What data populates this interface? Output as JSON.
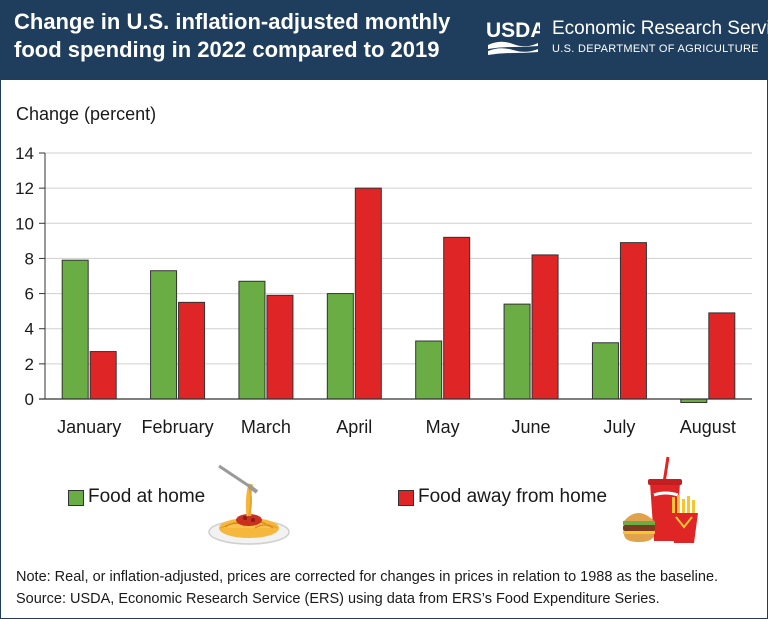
{
  "header": {
    "title": "Change in U.S. inflation-adjusted monthly food spending in 2022 compared to 2019",
    "logo_text": "USDA",
    "agency": "Economic Research Service",
    "department": "U.S. DEPARTMENT OF AGRICULTURE"
  },
  "colors": {
    "header_bg": "#1f3e5e",
    "food_at_home": "#6aad45",
    "food_away": "#e02526",
    "grid": "#d0d0d0"
  },
  "chart_data": {
    "type": "bar",
    "title": "Change in U.S. inflation-adjusted monthly food spending in 2022 compared to 2019",
    "ylabel": "Change (percent)",
    "xlabel": "",
    "ylim": [
      0,
      14
    ],
    "yticks": [
      0,
      2,
      4,
      6,
      8,
      10,
      12,
      14
    ],
    "grid": true,
    "legend": "bottom",
    "categories": [
      "January",
      "February",
      "March",
      "April",
      "May",
      "June",
      "July",
      "August"
    ],
    "series": [
      {
        "name": "Food at home",
        "color": "#6aad45",
        "values": [
          7.9,
          7.3,
          6.7,
          6.0,
          3.3,
          5.4,
          3.2,
          -0.2
        ]
      },
      {
        "name": "Food away from home",
        "color": "#e02526",
        "values": [
          2.7,
          5.5,
          5.9,
          12.0,
          9.2,
          8.2,
          8.9,
          4.9
        ]
      }
    ]
  },
  "legend": {
    "home_label": "Food at home",
    "away_label": "Food away from home",
    "home_icon": "spaghetti-icon",
    "away_icon": "burger-fries-soda-icon"
  },
  "footer": {
    "note": "Note: Real, or inflation-adjusted, prices are corrected for changes in prices in relation to 1988 as the baseline.",
    "source": "Source: USDA, Economic Research Service (ERS) using data from ERS’s Food Expenditure Series."
  }
}
